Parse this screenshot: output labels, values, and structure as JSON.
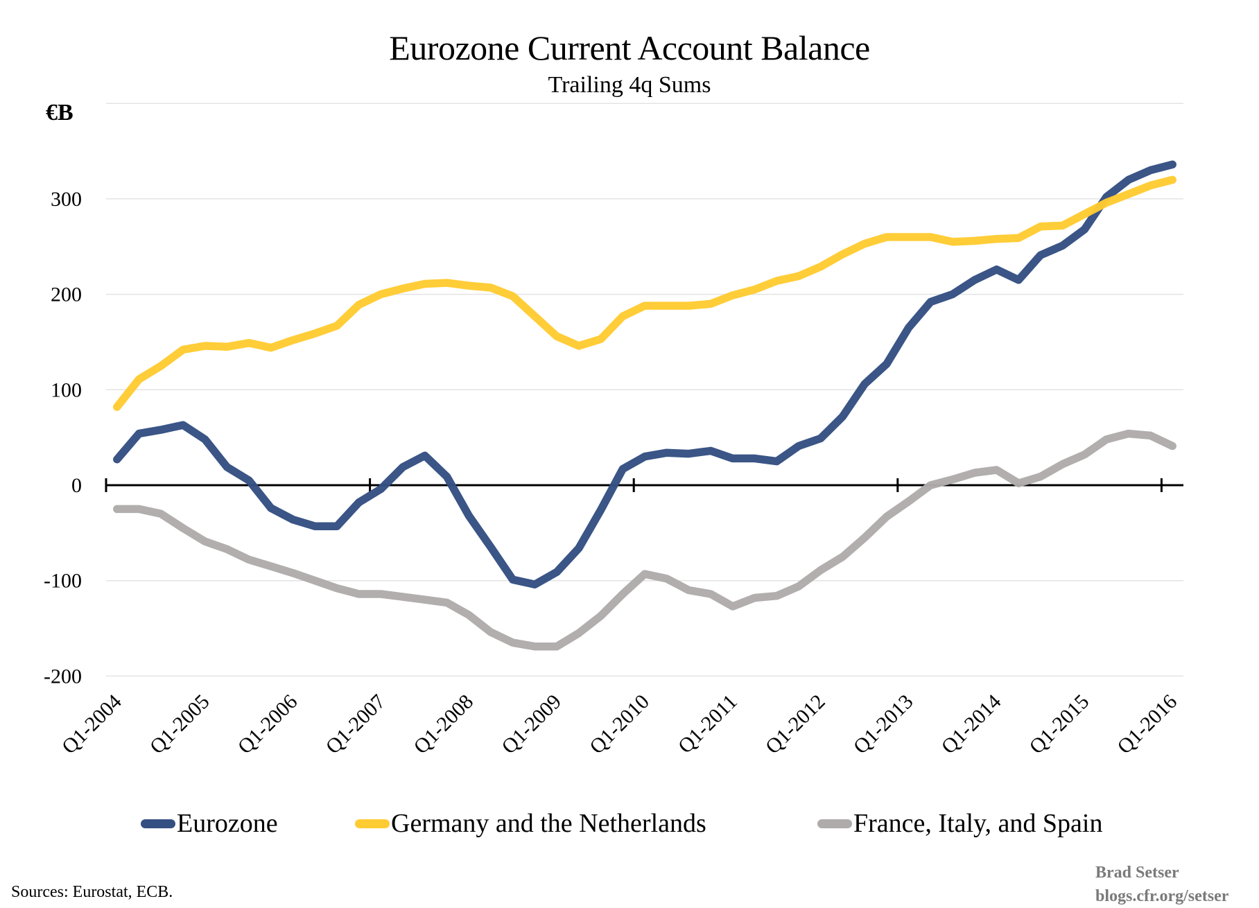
{
  "chart_data": {
    "type": "line",
    "title": "Eurozone Current Account Balance",
    "subtitle": "Trailing 4q Sums",
    "ylabel": "€B",
    "xlabel": "",
    "ylim": [
      -200,
      400
    ],
    "yticks": [
      -200,
      -100,
      0,
      100,
      200,
      300
    ],
    "ytick_labels": [
      "-200",
      "-100",
      "0",
      "100",
      "200",
      "300"
    ],
    "grid": true,
    "legend_position": "bottom",
    "x": [
      "Q1-2004",
      "Q2-2004",
      "Q3-2004",
      "Q4-2004",
      "Q1-2005",
      "Q2-2005",
      "Q3-2005",
      "Q4-2005",
      "Q1-2006",
      "Q2-2006",
      "Q3-2006",
      "Q4-2006",
      "Q1-2007",
      "Q2-2007",
      "Q3-2007",
      "Q4-2007",
      "Q1-2008",
      "Q2-2008",
      "Q3-2008",
      "Q4-2008",
      "Q1-2009",
      "Q2-2009",
      "Q3-2009",
      "Q4-2009",
      "Q1-2010",
      "Q2-2010",
      "Q3-2010",
      "Q4-2010",
      "Q1-2011",
      "Q2-2011",
      "Q3-2011",
      "Q4-2011",
      "Q1-2012",
      "Q2-2012",
      "Q3-2012",
      "Q4-2012",
      "Q1-2013",
      "Q2-2013",
      "Q3-2013",
      "Q4-2013",
      "Q1-2014",
      "Q2-2014",
      "Q3-2014",
      "Q4-2014",
      "Q1-2015",
      "Q2-2015",
      "Q3-2015",
      "Q4-2015",
      "Q1-2016"
    ],
    "xtick_labels": [
      "Q1-2004",
      "Q1-2005",
      "Q1-2006",
      "Q1-2007",
      "Q1-2008",
      "Q1-2009",
      "Q1-2010",
      "Q1-2011",
      "Q1-2012",
      "Q1-2013",
      "Q1-2014",
      "Q1-2015",
      "Q1-2016"
    ],
    "series": [
      {
        "name": "Eurozone",
        "color": "#344F82",
        "values": [
          27,
          54,
          58,
          63,
          48,
          19,
          5,
          -24,
          -36,
          -43,
          -43,
          -18,
          -4,
          19,
          31,
          9,
          -32,
          -65,
          -99,
          -104,
          -91,
          -66,
          -26,
          17,
          30,
          34,
          33,
          36,
          28,
          28,
          25,
          41,
          49,
          72,
          106,
          127,
          165,
          192,
          200,
          215,
          226,
          215,
          241,
          251,
          268,
          302,
          320,
          330,
          336
        ]
      },
      {
        "name": "Germany and the Netherlands",
        "color": "#FFCB32",
        "values": [
          82,
          111,
          125,
          142,
          146,
          145,
          149,
          144,
          152,
          159,
          167,
          189,
          200,
          206,
          211,
          212,
          209,
          207,
          198,
          177,
          156,
          146,
          153,
          177,
          188,
          188,
          188,
          190,
          199,
          205,
          214,
          219,
          229,
          242,
          253,
          260,
          260,
          260,
          255,
          256,
          258,
          259,
          271,
          272,
          284,
          296,
          305,
          314,
          320
        ]
      },
      {
        "name": "France, Italy, and Spain",
        "color": "#AEABAA",
        "values": [
          -25,
          -25,
          -30,
          -45,
          -59,
          -67,
          -78,
          -85,
          -92,
          -100,
          -108,
          -114,
          -114,
          -117,
          -120,
          -123,
          -136,
          -154,
          -165,
          -169,
          -169,
          -155,
          -137,
          -114,
          -93,
          -98,
          -110,
          -114,
          -127,
          -118,
          -116,
          -106,
          -89,
          -75,
          -55,
          -33,
          -17,
          0,
          6,
          13,
          16,
          2,
          9,
          22,
          32,
          48,
          54,
          52,
          41
        ]
      }
    ]
  },
  "footer": {
    "sources": "Sources: Eurostat, ECB.",
    "author": "Brad Setser",
    "blog": "blogs.cfr.org/setser"
  }
}
